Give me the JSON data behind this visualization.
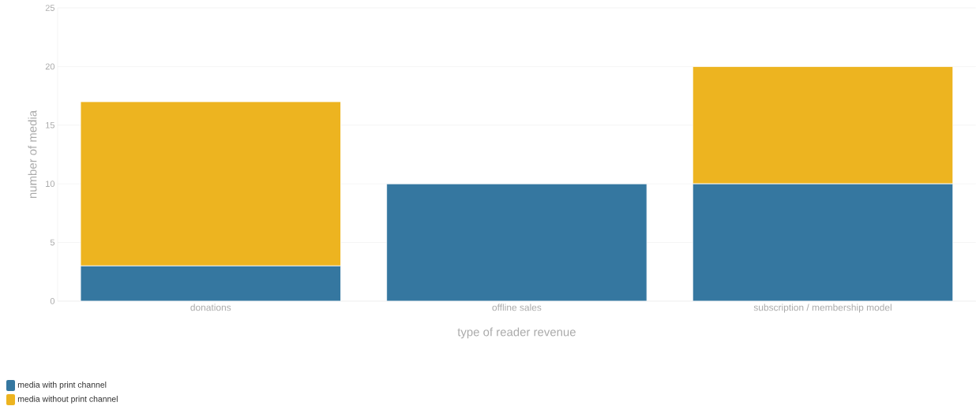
{
  "chart_data": {
    "type": "bar",
    "stacked": true,
    "xlabel": "type of reader revenue",
    "ylabel": "number of media",
    "categories": [
      "donations",
      "offline sales",
      "subscription / membership model"
    ],
    "series": [
      {
        "name": "media with print channel",
        "color": "#3577a0",
        "values": [
          3,
          10,
          10
        ]
      },
      {
        "name": "media without print channel",
        "color": "#edb420",
        "values": [
          14,
          0,
          10
        ]
      }
    ],
    "ylim": [
      0,
      25
    ],
    "yticks": [
      0,
      5,
      10,
      15,
      20,
      25
    ],
    "grid": "y",
    "legend": "bottom left"
  }
}
